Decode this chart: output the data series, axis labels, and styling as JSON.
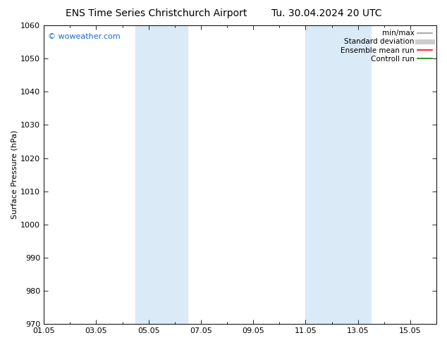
{
  "title_left": "ENS Time Series Christchurch Airport",
  "title_right": "Tu. 30.04.2024 20 UTC",
  "ylabel": "Surface Pressure (hPa)",
  "ylim": [
    970,
    1060
  ],
  "yticks": [
    970,
    980,
    990,
    1000,
    1010,
    1020,
    1030,
    1040,
    1050,
    1060
  ],
  "xlim_start": 0,
  "xlim_end": 15,
  "xtick_labels": [
    "01.05",
    "03.05",
    "05.05",
    "07.05",
    "09.05",
    "11.05",
    "13.05",
    "15.05"
  ],
  "xtick_positions": [
    0,
    2,
    4,
    6,
    8,
    10,
    12,
    14
  ],
  "shaded_bands": [
    {
      "x_start": 3.5,
      "x_end": 5.5
    },
    {
      "x_start": 10.0,
      "x_end": 12.5
    }
  ],
  "shade_color": "#daeaf7",
  "watermark": "© woweather.com",
  "watermark_color": "#1a6bcc",
  "legend_items": [
    {
      "label": "min/max",
      "color": "#999999",
      "lw": 1.2,
      "style": "solid"
    },
    {
      "label": "Standard deviation",
      "color": "#cccccc",
      "lw": 5,
      "style": "solid"
    },
    {
      "label": "Ensemble mean run",
      "color": "#ff0000",
      "lw": 1.2,
      "style": "solid"
    },
    {
      "label": "Controll run",
      "color": "#008800",
      "lw": 1.2,
      "style": "solid"
    }
  ],
  "bg_color": "#ffffff",
  "axes_bg_color": "#ffffff",
  "title_fontsize": 10,
  "tick_fontsize": 8,
  "ylabel_fontsize": 8,
  "legend_fontsize": 7.5,
  "watermark_fontsize": 8
}
